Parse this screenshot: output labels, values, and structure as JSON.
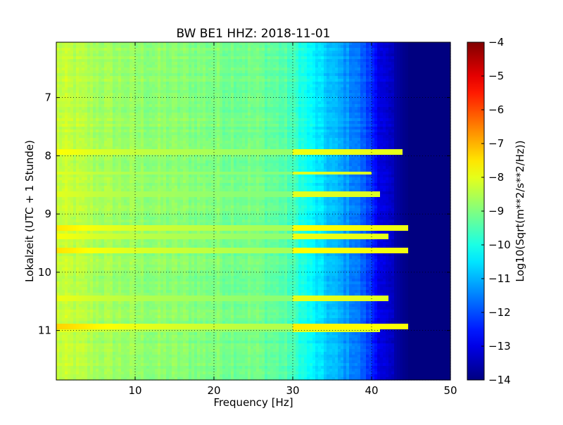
{
  "chart_data": {
    "type": "heatmap",
    "title": "BW BE1 HHZ: 2018-11-01",
    "xlabel": "Frequency [Hz]",
    "ylabel": "Lokalzeit (UTC + 1 Stunde)",
    "xlim": [
      0,
      50
    ],
    "ylim": [
      11.85,
      6.05
    ],
    "y_inverted": true,
    "x_ticks": [
      10,
      20,
      30,
      40,
      50
    ],
    "x_tick_labels": [
      "10",
      "20",
      "30",
      "40",
      "50"
    ],
    "y_ticks": [
      7,
      8,
      9,
      10,
      11
    ],
    "y_tick_labels": [
      "7",
      "8",
      "9",
      "10",
      "11"
    ],
    "grid": true,
    "colormap": "jet",
    "colorbar": {
      "label": "Log10(Sqrt(m**2/s**2/Hz))",
      "range": [
        -14,
        -4
      ],
      "ticks": [
        -14,
        -13,
        -12,
        -11,
        -10,
        -9,
        -8,
        -7,
        -6,
        -5,
        -4
      ],
      "tick_labels": [
        "−14",
        "−13",
        "−12",
        "−11",
        "−10",
        "−9",
        "−8",
        "−7",
        "−6",
        "−5",
        "−4"
      ]
    },
    "frequency_profile": {
      "frequency_hz": [
        0,
        2,
        5,
        10,
        15,
        20,
        25,
        28,
        30,
        32,
        34,
        36,
        38,
        39,
        40,
        41,
        42,
        43,
        44,
        45,
        50
      ],
      "log10_amplitude": [
        -8.3,
        -8.4,
        -8.6,
        -8.8,
        -8.9,
        -9.0,
        -9.1,
        -9.3,
        -9.6,
        -10.2,
        -10.7,
        -11.1,
        -11.5,
        -11.9,
        -12.3,
        -12.9,
        -13.3,
        -13.6,
        -13.85,
        -14.0,
        -14.0
      ]
    },
    "horizontal_bands": [
      {
        "time_h": 7.95,
        "strength": 1.0,
        "extends_to_hz": 44
      },
      {
        "time_h": 8.3,
        "strength": 0.5,
        "extends_to_hz": 40
      },
      {
        "time_h": 8.65,
        "strength": 0.5,
        "extends_to_hz": 41
      },
      {
        "time_h": 9.25,
        "strength": 1.4,
        "extends_to_hz": 45
      },
      {
        "time_h": 9.4,
        "strength": 0.9,
        "extends_to_hz": 42
      },
      {
        "time_h": 9.63,
        "strength": 1.5,
        "extends_to_hz": 45
      },
      {
        "time_h": 10.45,
        "strength": 0.7,
        "extends_to_hz": 42
      },
      {
        "time_h": 10.92,
        "strength": 1.8,
        "extends_to_hz": 46
      },
      {
        "time_h": 11.0,
        "strength": 0.6,
        "extends_to_hz": 41
      }
    ]
  }
}
